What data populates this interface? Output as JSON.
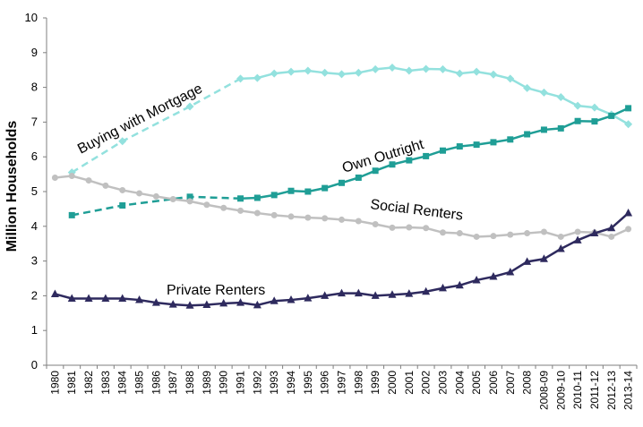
{
  "chart_data": {
    "type": "line",
    "title": "",
    "xlabel": "",
    "ylabel": "Million Households",
    "ylim": [
      0,
      10
    ],
    "yticks": [
      0,
      1,
      2,
      3,
      4,
      5,
      6,
      7,
      8,
      9,
      10
    ],
    "grid": false,
    "legend": "none",
    "categories": [
      "1980",
      "1981",
      "1982",
      "1983",
      "1984",
      "1985",
      "1986",
      "1987",
      "1988",
      "1989",
      "1990",
      "1991",
      "1992",
      "1993",
      "1994",
      "1995",
      "1996",
      "1997",
      "1998",
      "1999",
      "2000",
      "2001",
      "2002",
      "2003",
      "2004",
      "2005",
      "2006",
      "2007",
      "2008",
      "2008-09",
      "2009-10",
      "2010-11",
      "2011-12",
      "2012-13",
      "2013-14"
    ],
    "series": [
      {
        "name": "Buying with Mortgage",
        "color": "#93e1de",
        "marker": "diamond",
        "points": [
          [
            1,
            5.55
          ],
          [
            4,
            6.45
          ],
          [
            8,
            7.45
          ],
          [
            11,
            8.25
          ],
          [
            12,
            8.27
          ],
          [
            13,
            8.4
          ],
          [
            14,
            8.45
          ],
          [
            15,
            8.48
          ],
          [
            16,
            8.42
          ],
          [
            17,
            8.38
          ],
          [
            18,
            8.42
          ],
          [
            19,
            8.52
          ],
          [
            20,
            8.57
          ],
          [
            21,
            8.48
          ],
          [
            22,
            8.53
          ],
          [
            23,
            8.52
          ],
          [
            24,
            8.4
          ],
          [
            25,
            8.45
          ],
          [
            26,
            8.37
          ],
          [
            27,
            8.25
          ],
          [
            28,
            7.98
          ],
          [
            29,
            7.85
          ],
          [
            30,
            7.72
          ],
          [
            31,
            7.47
          ],
          [
            32,
            7.42
          ],
          [
            33,
            7.22
          ],
          [
            34,
            6.94
          ]
        ],
        "dashed_until_index": 3
      },
      {
        "name": "Own Outright",
        "color": "#1f9e96",
        "marker": "square",
        "points": [
          [
            1,
            4.32
          ],
          [
            4,
            4.6
          ],
          [
            8,
            4.85
          ],
          [
            11,
            4.8
          ],
          [
            12,
            4.82
          ],
          [
            13,
            4.9
          ],
          [
            14,
            5.02
          ],
          [
            15,
            5.0
          ],
          [
            16,
            5.1
          ],
          [
            17,
            5.25
          ],
          [
            18,
            5.4
          ],
          [
            19,
            5.6
          ],
          [
            20,
            5.78
          ],
          [
            21,
            5.9
          ],
          [
            22,
            6.02
          ],
          [
            23,
            6.18
          ],
          [
            24,
            6.3
          ],
          [
            25,
            6.35
          ],
          [
            26,
            6.42
          ],
          [
            27,
            6.5
          ],
          [
            28,
            6.65
          ],
          [
            29,
            6.78
          ],
          [
            30,
            6.82
          ],
          [
            31,
            7.03
          ],
          [
            32,
            7.02
          ],
          [
            33,
            7.18
          ],
          [
            34,
            7.4
          ]
        ],
        "dashed_until_index": 3
      },
      {
        "name": "Social Renters",
        "color": "#c0c0c0",
        "marker": "circle",
        "points": [
          [
            0,
            5.4
          ],
          [
            1,
            5.45
          ],
          [
            2,
            5.32
          ],
          [
            3,
            5.17
          ],
          [
            4,
            5.04
          ],
          [
            5,
            4.95
          ],
          [
            6,
            4.86
          ],
          [
            7,
            4.78
          ],
          [
            8,
            4.72
          ],
          [
            9,
            4.62
          ],
          [
            10,
            4.53
          ],
          [
            11,
            4.45
          ],
          [
            12,
            4.38
          ],
          [
            13,
            4.32
          ],
          [
            14,
            4.28
          ],
          [
            15,
            4.25
          ],
          [
            16,
            4.23
          ],
          [
            17,
            4.19
          ],
          [
            18,
            4.15
          ],
          [
            19,
            4.06
          ],
          [
            20,
            3.96
          ],
          [
            21,
            3.97
          ],
          [
            22,
            3.95
          ],
          [
            23,
            3.82
          ],
          [
            24,
            3.8
          ],
          [
            25,
            3.7
          ],
          [
            26,
            3.72
          ],
          [
            27,
            3.76
          ],
          [
            28,
            3.8
          ],
          [
            29,
            3.84
          ],
          [
            30,
            3.7
          ],
          [
            31,
            3.84
          ],
          [
            32,
            3.82
          ],
          [
            33,
            3.7
          ],
          [
            34,
            3.92
          ]
        ],
        "dashed_until_index": -1
      },
      {
        "name": "Private Renters",
        "color": "#2e2a5e",
        "marker": "triangle",
        "points": [
          [
            0,
            2.05
          ],
          [
            1,
            1.92
          ],
          [
            2,
            1.92
          ],
          [
            3,
            1.92
          ],
          [
            4,
            1.92
          ],
          [
            5,
            1.88
          ],
          [
            6,
            1.8
          ],
          [
            7,
            1.75
          ],
          [
            8,
            1.72
          ],
          [
            9,
            1.74
          ],
          [
            10,
            1.78
          ],
          [
            11,
            1.8
          ],
          [
            12,
            1.73
          ],
          [
            13,
            1.85
          ],
          [
            14,
            1.88
          ],
          [
            15,
            1.93
          ],
          [
            16,
            2.0
          ],
          [
            17,
            2.07
          ],
          [
            18,
            2.07
          ],
          [
            19,
            2.0
          ],
          [
            20,
            2.03
          ],
          [
            21,
            2.06
          ],
          [
            22,
            2.12
          ],
          [
            23,
            2.22
          ],
          [
            24,
            2.3
          ],
          [
            25,
            2.45
          ],
          [
            26,
            2.55
          ],
          [
            27,
            2.68
          ],
          [
            28,
            2.98
          ],
          [
            29,
            3.06
          ],
          [
            30,
            3.35
          ],
          [
            31,
            3.6
          ],
          [
            32,
            3.8
          ],
          [
            33,
            3.95
          ],
          [
            34,
            4.38
          ]
        ],
        "dashed_until_index": -1
      }
    ],
    "annotations": [
      {
        "series": "Buying with Mortgage",
        "text": "Buying with Mortgage"
      },
      {
        "series": "Own Outright",
        "text": "Own Outright"
      },
      {
        "series": "Social Renters",
        "text": "Social Renters"
      },
      {
        "series": "Private Renters",
        "text": "Private Renters"
      }
    ]
  }
}
